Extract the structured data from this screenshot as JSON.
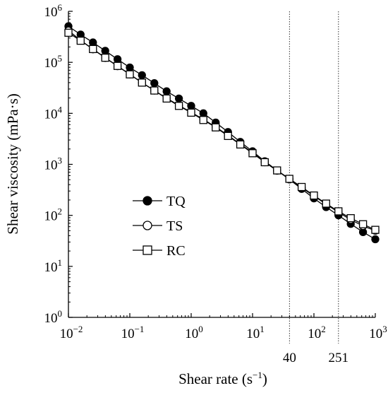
{
  "chart_data": {
    "type": "line",
    "x_scale": "log",
    "y_scale": "log",
    "xlim": [
      0.01,
      1000
    ],
    "ylim": [
      1,
      1000000
    ],
    "xlabel": "Shear rate (s⁻¹)",
    "ylabel": "Shear viscosity (mPa·s)",
    "x_ticks": [
      {
        "value": 0.01,
        "base": "10",
        "exp": "−2"
      },
      {
        "value": 0.1,
        "base": "10",
        "exp": "−1"
      },
      {
        "value": 1,
        "base": "10",
        "exp": "0"
      },
      {
        "value": 10,
        "base": "10",
        "exp": "1"
      },
      {
        "value": 100,
        "base": "10",
        "exp": "2"
      },
      {
        "value": 1000,
        "base": "10",
        "exp": "3"
      }
    ],
    "y_ticks": [
      {
        "value": 1,
        "base": "10",
        "exp": "0"
      },
      {
        "value": 10,
        "base": "10",
        "exp": "1"
      },
      {
        "value": 100,
        "base": "10",
        "exp": "2"
      },
      {
        "value": 1000,
        "base": "10",
        "exp": "3"
      },
      {
        "value": 10000,
        "base": "10",
        "exp": "4"
      },
      {
        "value": 100000,
        "base": "10",
        "exp": "5"
      },
      {
        "value": 1000000,
        "base": "10",
        "exp": "6"
      }
    ],
    "reference_lines": [
      {
        "x": 40,
        "label": "40",
        "style": "dotted"
      },
      {
        "x": 251,
        "label": "251",
        "style": "dotted"
      }
    ],
    "legend_position": "lower-left",
    "series": [
      {
        "name": "TQ",
        "marker": "filled-circle",
        "points": [
          [
            0.01,
            510000
          ],
          [
            0.0158,
            350000
          ],
          [
            0.0251,
            245000
          ],
          [
            0.0398,
            168000
          ],
          [
            0.0631,
            115000
          ],
          [
            0.1,
            79000
          ],
          [
            0.158,
            56000
          ],
          [
            0.251,
            39000
          ],
          [
            0.398,
            27000
          ],
          [
            0.631,
            19500
          ],
          [
            1,
            14000
          ],
          [
            1.58,
            10000
          ],
          [
            2.51,
            6600
          ],
          [
            3.98,
            4300
          ],
          [
            6.31,
            2750
          ],
          [
            10,
            1800
          ],
          [
            15.8,
            1150
          ],
          [
            25.1,
            760
          ],
          [
            39.8,
            505
          ],
          [
            63.1,
            330
          ],
          [
            100,
            215
          ],
          [
            158,
            145
          ],
          [
            251,
            100
          ],
          [
            398,
            68
          ],
          [
            631,
            47
          ],
          [
            1000,
            34
          ]
        ]
      },
      {
        "name": "TS",
        "marker": "open-circle",
        "points": [
          [
            0.01,
            420000
          ],
          [
            0.0158,
            270000
          ],
          [
            0.0251,
            180000
          ],
          [
            0.0398,
            122000
          ],
          [
            0.0631,
            84000
          ],
          [
            0.1,
            58000
          ],
          [
            0.158,
            40000
          ],
          [
            0.251,
            28000
          ],
          [
            0.398,
            19800
          ],
          [
            0.631,
            14300
          ],
          [
            1,
            10500
          ],
          [
            1.58,
            7600
          ],
          [
            2.51,
            5400
          ],
          [
            3.98,
            3700
          ],
          [
            6.31,
            2500
          ],
          [
            10,
            1700
          ],
          [
            15.8,
            1100
          ],
          [
            25.1,
            750
          ],
          [
            39.8,
            520
          ],
          [
            63.1,
            350
          ],
          [
            100,
            240
          ],
          [
            158,
            165
          ],
          [
            251,
            115
          ],
          [
            398,
            82
          ],
          [
            631,
            62
          ],
          [
            1000,
            50
          ]
        ]
      },
      {
        "name": "RC",
        "marker": "open-square",
        "points": [
          [
            0.01,
            380000
          ],
          [
            0.0158,
            265000
          ],
          [
            0.0251,
            182000
          ],
          [
            0.0398,
            123000
          ],
          [
            0.0631,
            85000
          ],
          [
            0.1,
            58000
          ],
          [
            0.158,
            40000
          ],
          [
            0.251,
            28000
          ],
          [
            0.398,
            19500
          ],
          [
            0.631,
            14000
          ],
          [
            1,
            10300
          ],
          [
            1.58,
            7400
          ],
          [
            2.51,
            5300
          ],
          [
            3.98,
            3600
          ],
          [
            6.31,
            2450
          ],
          [
            10,
            1650
          ],
          [
            15.8,
            1100
          ],
          [
            25.1,
            760
          ],
          [
            39.8,
            520
          ],
          [
            63.1,
            360
          ],
          [
            100,
            245
          ],
          [
            158,
            170
          ],
          [
            251,
            120
          ],
          [
            398,
            88
          ],
          [
            631,
            67
          ],
          [
            1000,
            52
          ]
        ]
      }
    ]
  }
}
